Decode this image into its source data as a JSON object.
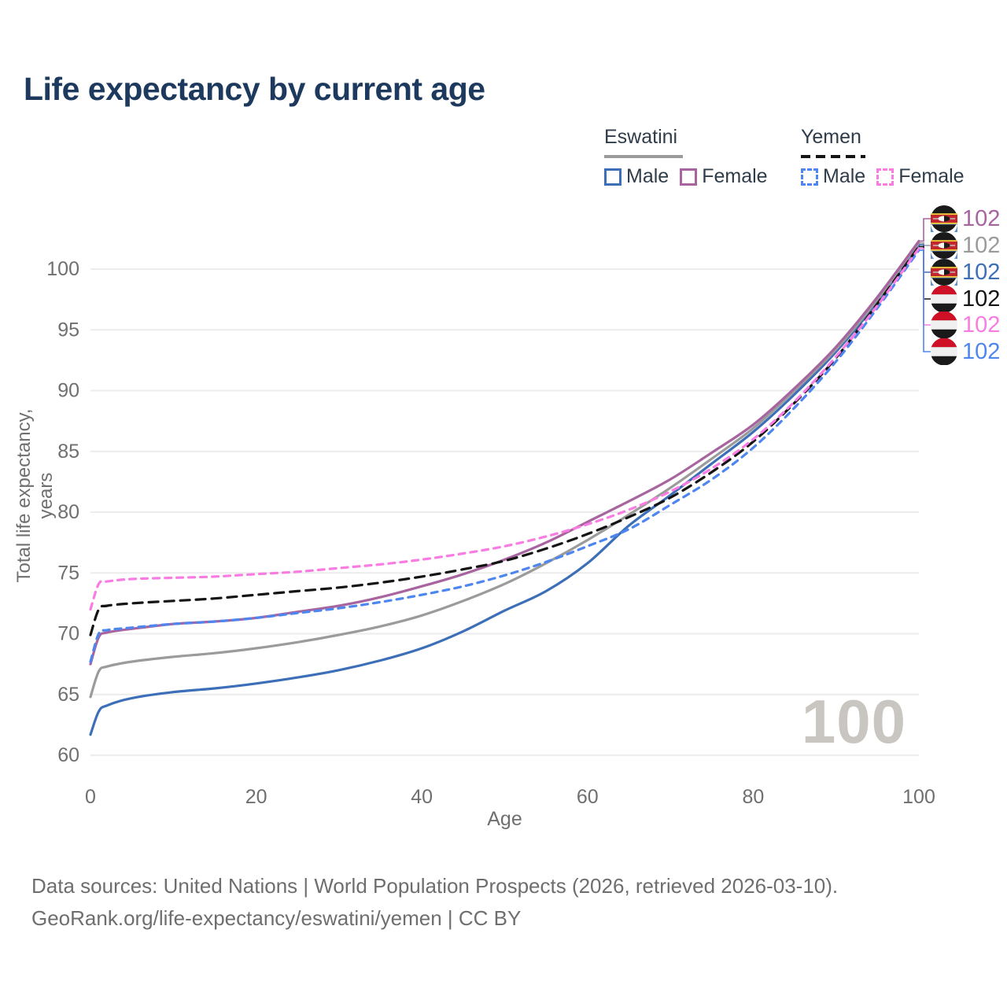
{
  "title": "Life expectancy by current age",
  "legend": {
    "groups": [
      {
        "label": "Eswatini",
        "line_style": "solid",
        "underline_color": "#9b9b9b",
        "items": [
          {
            "label": "Male",
            "color": "#3d6fb8",
            "dashed": false
          },
          {
            "label": "Female",
            "color": "#a8649f",
            "dashed": false
          }
        ]
      },
      {
        "label": "Yemen",
        "line_style": "dashed",
        "underline_color": "#141414",
        "items": [
          {
            "label": "Male",
            "color": "#4e86f0",
            "dashed": true
          },
          {
            "label": "Female",
            "color": "#f97ce3",
            "dashed": true
          }
        ]
      }
    ]
  },
  "axes": {
    "y_label": "Total life expectancy, years",
    "x_label": "Age",
    "y_ticks": [
      60,
      65,
      70,
      75,
      80,
      85,
      90,
      95,
      100
    ],
    "x_ticks": [
      0,
      20,
      40,
      60,
      80,
      100
    ]
  },
  "watermark": "100",
  "end_labels": [
    {
      "series": "Eswatini Female",
      "flag": "eswatini",
      "value": "102",
      "color": "#a8649f"
    },
    {
      "series": "Eswatini",
      "flag": "eswatini",
      "value": "102",
      "color": "#9b9b9b"
    },
    {
      "series": "Eswatini Male",
      "flag": "eswatini",
      "value": "102",
      "color": "#3d6fb8"
    },
    {
      "series": "Yemen",
      "flag": "yemen",
      "value": "102",
      "color": "#141414"
    },
    {
      "series": "Yemen Female",
      "flag": "yemen",
      "value": "102",
      "color": "#f97ce3"
    },
    {
      "series": "Yemen Male",
      "flag": "yemen",
      "value": "102",
      "color": "#4e86f0"
    }
  ],
  "footer": {
    "line1": "Data sources: United Nations | World Population Prospects (2026, retrieved 2026-03-10).",
    "line2": "GeoRank.org/life-expectancy/eswatini/yemen | CC BY"
  },
  "chart_data": {
    "type": "line",
    "title": "Life expectancy by current age",
    "xlabel": "Age",
    "ylabel": "Total life expectancy, years",
    "xlim": [
      0,
      100
    ],
    "ylim": [
      60,
      102.5
    ],
    "grid": "horizontal",
    "legend_position": "top-right",
    "x": [
      0,
      1,
      2,
      5,
      10,
      15,
      20,
      25,
      30,
      35,
      40,
      45,
      50,
      55,
      60,
      65,
      70,
      75,
      80,
      85,
      90,
      95,
      100
    ],
    "series": [
      {
        "name": "Eswatini Male",
        "country": "Eswatini",
        "sex": "male",
        "color": "#3d6fb8",
        "dash": "none",
        "values": [
          61.7,
          63.6,
          64.1,
          64.7,
          65.2,
          65.5,
          65.9,
          66.4,
          67.0,
          67.8,
          68.8,
          70.2,
          71.9,
          73.5,
          75.8,
          78.9,
          81.4,
          84.0,
          86.6,
          89.7,
          93.2,
          97.3,
          102.0
        ]
      },
      {
        "name": "Eswatini",
        "country": "Eswatini",
        "sex": "both",
        "color": "#9b9b9b",
        "dash": "none",
        "values": [
          64.8,
          66.9,
          67.3,
          67.7,
          68.1,
          68.4,
          68.8,
          69.3,
          69.9,
          70.6,
          71.5,
          72.7,
          74.1,
          75.8,
          77.7,
          79.8,
          82.0,
          84.4,
          86.9,
          90.0,
          93.4,
          97.5,
          102.15
        ]
      },
      {
        "name": "Eswatini Female",
        "country": "Eswatini",
        "sex": "female",
        "color": "#a8649f",
        "dash": "none",
        "values": [
          67.5,
          69.7,
          70.1,
          70.4,
          70.8,
          71.0,
          71.3,
          71.8,
          72.3,
          73.0,
          73.9,
          74.9,
          76.1,
          77.5,
          79.2,
          80.9,
          82.7,
          84.9,
          87.2,
          90.2,
          93.6,
          97.7,
          102.3
        ]
      },
      {
        "name": "Yemen Male",
        "country": "Yemen",
        "sex": "male",
        "color": "#4e86f0",
        "dash": "dashed",
        "values": [
          67.7,
          70.0,
          70.3,
          70.5,
          70.8,
          71.0,
          71.3,
          71.7,
          72.1,
          72.6,
          73.2,
          73.9,
          74.8,
          75.9,
          77.2,
          78.6,
          80.6,
          82.7,
          85.3,
          88.6,
          92.4,
          96.8,
          101.55
        ]
      },
      {
        "name": "Yemen",
        "country": "Yemen",
        "sex": "both",
        "color": "#141414",
        "dash": "dashed",
        "values": [
          69.9,
          72.0,
          72.3,
          72.5,
          72.7,
          72.9,
          73.2,
          73.5,
          73.8,
          74.2,
          74.7,
          75.3,
          76.0,
          77.0,
          78.2,
          79.6,
          81.2,
          83.3,
          85.8,
          89.0,
          92.7,
          97.15,
          101.85
        ]
      },
      {
        "name": "Yemen Female",
        "country": "Yemen",
        "sex": "female",
        "color": "#f97ce3",
        "dash": "dashed",
        "values": [
          72.0,
          74.1,
          74.3,
          74.5,
          74.6,
          74.7,
          74.9,
          75.1,
          75.4,
          75.7,
          76.1,
          76.6,
          77.2,
          78.0,
          79.0,
          80.2,
          81.7,
          83.6,
          86.0,
          89.1,
          92.8,
          97.0,
          101.7
        ]
      }
    ]
  }
}
